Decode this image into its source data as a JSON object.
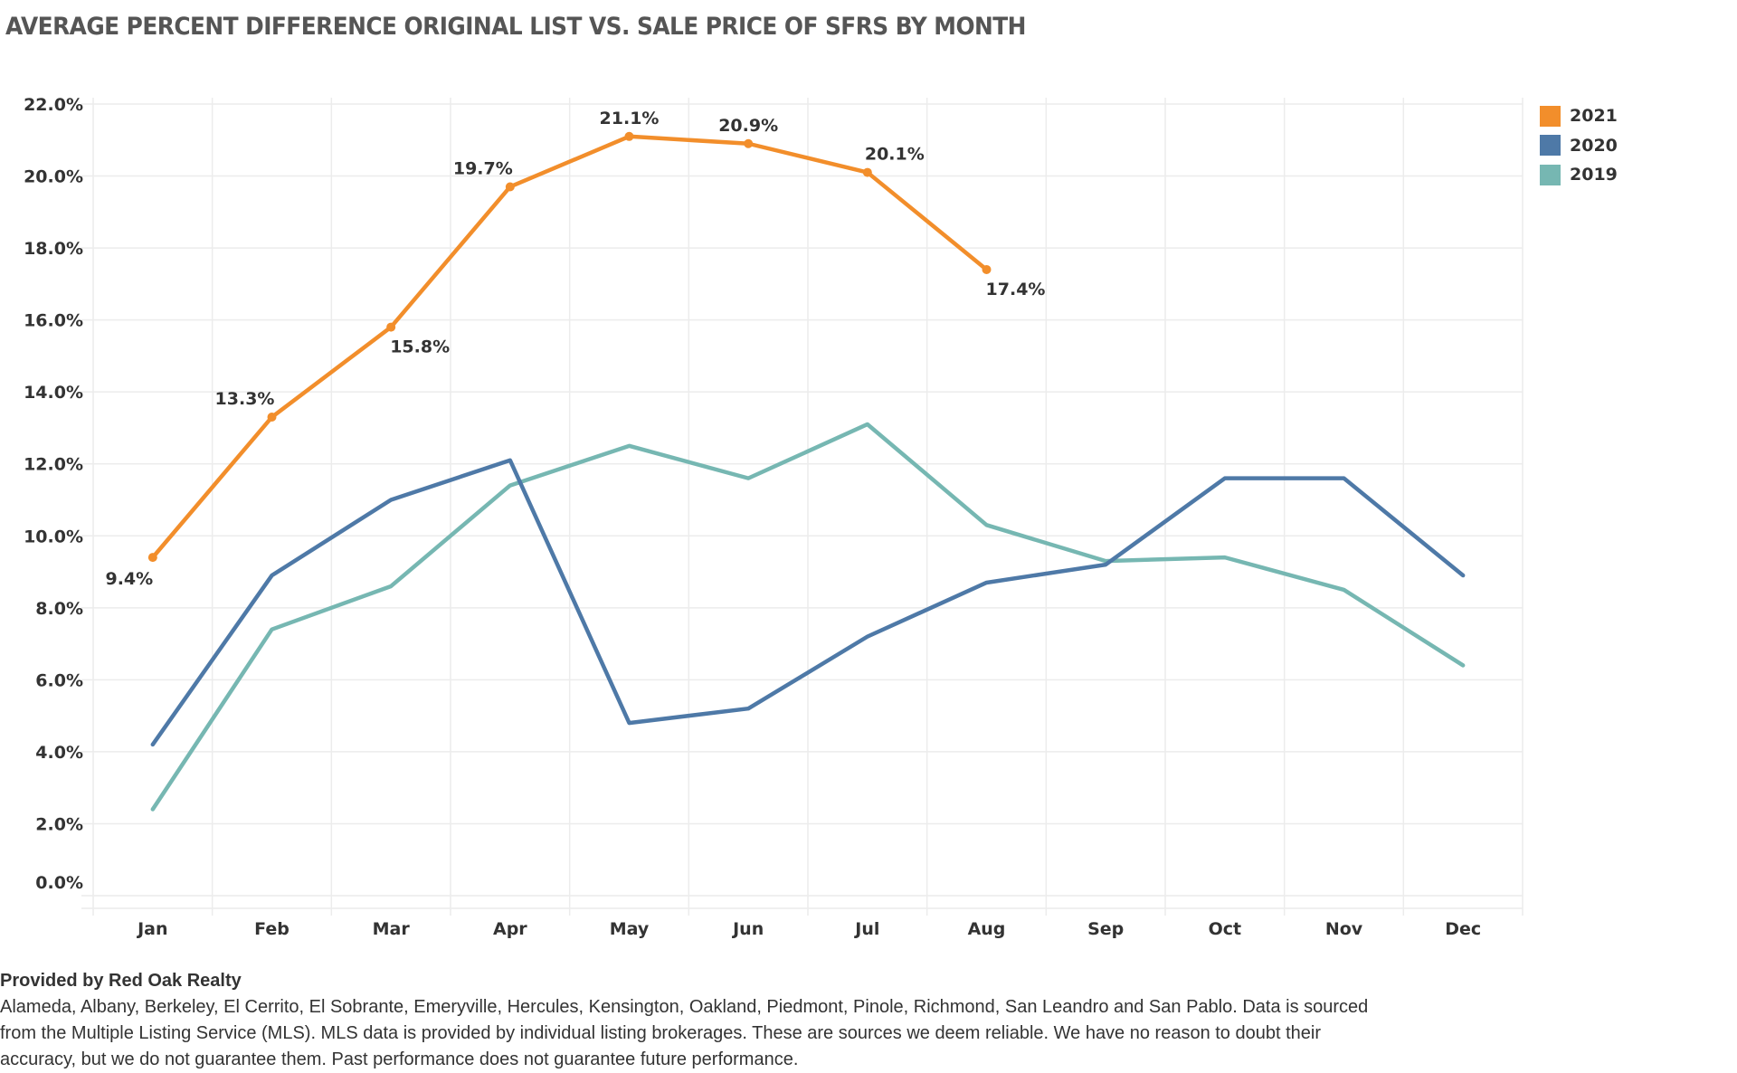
{
  "title": "AVERAGE PERCENT DIFFERENCE ORIGINAL LIST VS. SALE PRICE OF SFRS BY MONTH",
  "legend": {
    "items": [
      {
        "label": "2021",
        "color": "#F28E2B"
      },
      {
        "label": "2020",
        "color": "#4E79A7"
      },
      {
        "label": "2019",
        "color": "#76B7B2"
      }
    ]
  },
  "footer": {
    "heading": "Provided by Red Oak Realty",
    "lines": [
      "Alameda, Albany, Berkeley, El Cerrito, El Sobrante, Emeryville, Hercules, Kensington, Oakland, Piedmont, Pinole, Richmond, San Leandro and San Pablo. Data is sourced",
      "from the Multiple Listing Service (MLS). MLS data is provided by individual listing brokerages. These are sources we deem reliable. We have no reason to doubt their",
      "accuracy, but we do not guarantee them. Past performance does not guarantee future performance."
    ]
  },
  "chart_data": {
    "type": "line",
    "title": "AVERAGE PERCENT DIFFERENCE ORIGINAL LIST VS. SALE PRICE OF SFRS BY MONTH",
    "xlabel": "",
    "ylabel": "",
    "categories": [
      "Jan",
      "Feb",
      "Mar",
      "Apr",
      "May",
      "Jun",
      "Jul",
      "Aug",
      "Sep",
      "Oct",
      "Nov",
      "Dec"
    ],
    "ylim": [
      0,
      22
    ],
    "yticks": [
      0,
      2,
      4,
      6,
      8,
      10,
      12,
      14,
      16,
      18,
      20,
      22
    ],
    "ytick_labels": [
      "0.0%",
      "2.0%",
      "4.0%",
      "6.0%",
      "8.0%",
      "10.0%",
      "12.0%",
      "14.0%",
      "16.0%",
      "18.0%",
      "20.0%",
      "22.0%"
    ],
    "grid": true,
    "legend_position": "top-right",
    "series": [
      {
        "name": "2021",
        "color": "#F28E2B",
        "markers": true,
        "show_labels": true,
        "values": [
          9.4,
          13.3,
          15.8,
          19.7,
          21.1,
          20.9,
          20.1,
          17.4
        ],
        "labels": [
          "9.4%",
          "13.3%",
          "15.8%",
          "19.7%",
          "21.1%",
          "20.9%",
          "20.1%",
          "17.4%"
        ],
        "label_positions": [
          "below-left",
          "above-left",
          "below-right",
          "above-left",
          "above",
          "above",
          "above-right",
          "below-right"
        ]
      },
      {
        "name": "2020",
        "color": "#4E79A7",
        "markers": false,
        "show_labels": false,
        "values": [
          4.2,
          8.9,
          11.0,
          12.1,
          4.8,
          5.2,
          7.2,
          8.7,
          9.2,
          11.6,
          11.6,
          8.9
        ]
      },
      {
        "name": "2019",
        "color": "#76B7B2",
        "markers": false,
        "show_labels": false,
        "values": [
          2.4,
          7.4,
          8.6,
          11.4,
          12.5,
          11.6,
          13.1,
          10.3,
          9.3,
          9.4,
          8.5,
          6.4
        ]
      }
    ]
  }
}
